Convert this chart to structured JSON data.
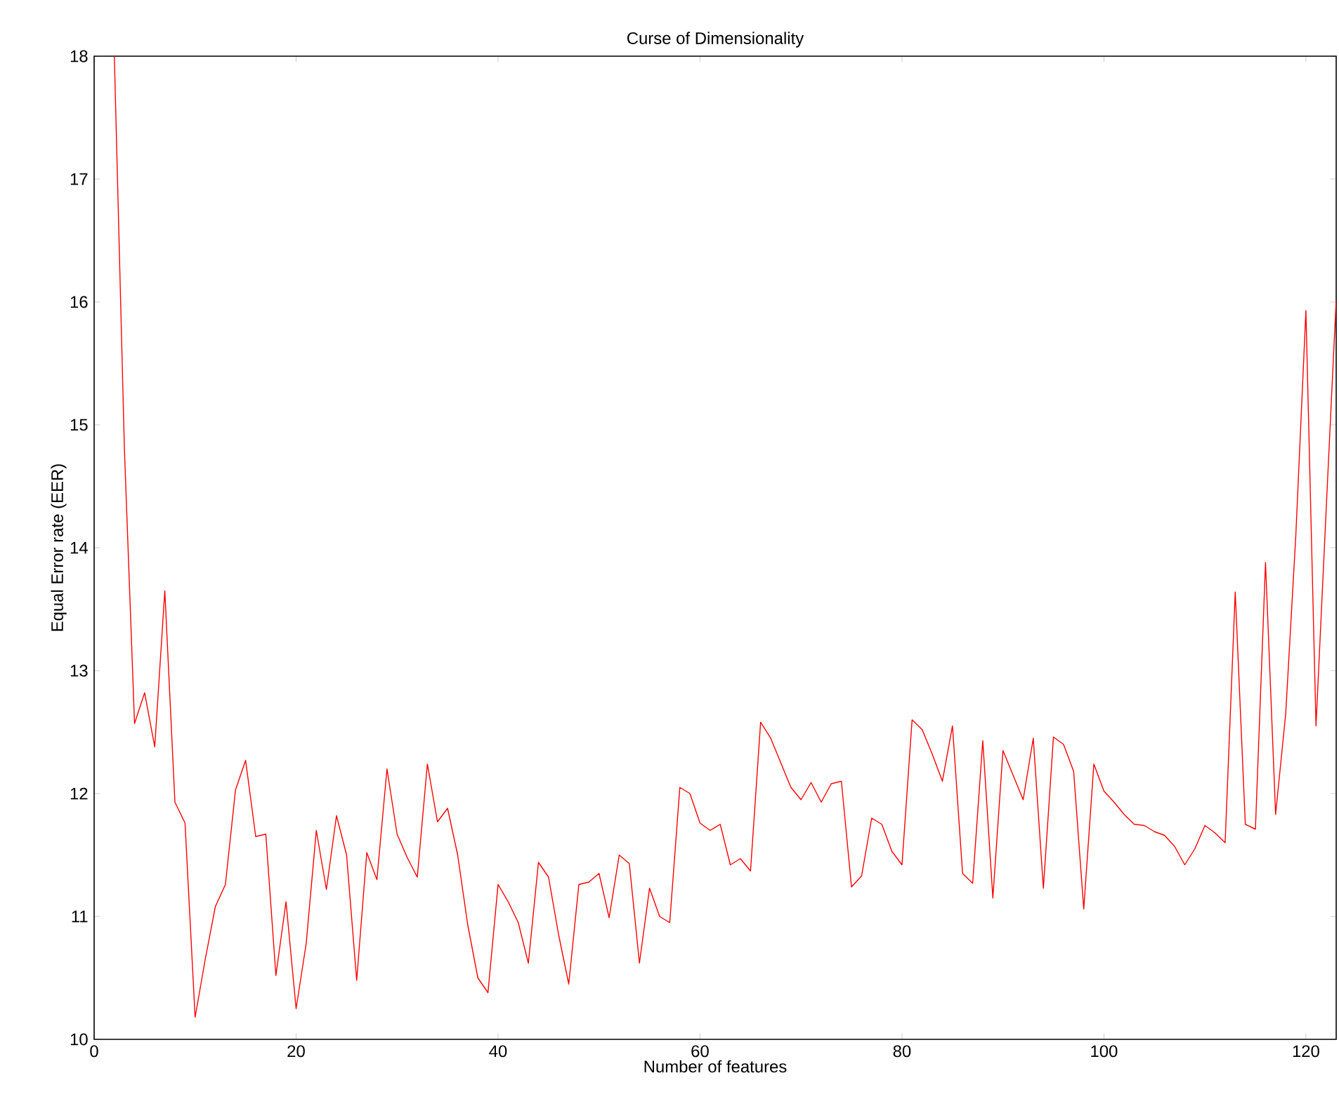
{
  "chart_data": {
    "type": "line",
    "title": "Curse of Dimensionality",
    "xlabel": "Number of features",
    "ylabel": "Equal Error rate (EER)",
    "x": [
      2,
      3,
      4,
      5,
      6,
      7,
      8,
      9,
      10,
      11,
      12,
      13,
      14,
      15,
      16,
      17,
      18,
      19,
      20,
      21,
      22,
      23,
      24,
      25,
      26,
      27,
      28,
      29,
      30,
      31,
      32,
      33,
      34,
      35,
      36,
      37,
      38,
      39,
      40,
      41,
      42,
      43,
      44,
      45,
      46,
      47,
      48,
      49,
      50,
      51,
      52,
      53,
      54,
      55,
      56,
      57,
      58,
      59,
      60,
      61,
      62,
      63,
      64,
      65,
      66,
      67,
      68,
      69,
      70,
      71,
      72,
      73,
      74,
      75,
      76,
      77,
      78,
      79,
      80,
      81,
      82,
      83,
      84,
      85,
      86,
      87,
      88,
      89,
      90,
      91,
      92,
      93,
      94,
      95,
      96,
      97,
      98,
      99,
      100,
      101,
      102,
      103,
      104,
      105,
      106,
      107,
      108,
      109,
      110,
      111,
      112,
      113,
      114,
      115,
      116,
      117,
      118,
      119,
      120,
      121,
      122,
      123
    ],
    "series": [
      {
        "color": "#ff0000",
        "values": [
          18,
          14.8,
          12.57,
          12.82,
          12.38,
          13.65,
          11.93,
          11.76,
          10.18,
          10.65,
          11.08,
          11.26,
          12.03,
          12.27,
          11.65,
          11.67,
          10.52,
          11.12,
          10.25,
          10.78,
          11.7,
          11.22,
          11.82,
          11.5,
          10.48,
          11.52,
          11.3,
          12.2,
          11.67,
          11.48,
          11.32,
          12.24,
          11.77,
          11.88,
          11.5,
          10.93,
          10.5,
          10.38,
          11.26,
          11.12,
          10.95,
          10.62,
          11.44,
          11.32,
          10.85,
          10.45,
          11.26,
          11.28,
          11.35,
          10.99,
          11.5,
          11.43,
          10.62,
          11.23,
          11.0,
          10.95,
          12.05,
          12.0,
          11.76,
          11.7,
          11.75,
          11.42,
          11.47,
          11.37,
          12.58,
          12.45,
          12.25,
          12.05,
          11.95,
          12.09,
          11.93,
          12.08,
          12.1,
          11.24,
          11.33,
          11.8,
          11.75,
          11.53,
          11.42,
          12.6,
          12.52,
          12.32,
          12.1,
          12.55,
          11.35,
          11.27,
          12.43,
          11.15,
          12.35,
          12.15,
          11.95,
          12.45,
          11.23,
          12.46,
          12.4,
          12.18,
          11.06,
          12.24,
          12.02,
          11.93,
          11.83,
          11.75,
          11.74,
          11.69,
          11.66,
          11.57,
          11.42,
          11.55,
          11.74,
          11.68,
          11.6,
          13.64,
          11.75,
          11.71,
          13.88,
          11.83,
          12.65,
          14.1,
          15.93,
          12.55,
          14.3,
          16.02
        ]
      }
    ],
    "xlim": [
      0,
      123
    ],
    "ylim": [
      10,
      18
    ],
    "xticks": [
      0,
      20,
      40,
      60,
      80,
      100,
      120
    ],
    "yticks": [
      10,
      11,
      12,
      13,
      14,
      15,
      16,
      17,
      18
    ],
    "grid": false
  }
}
